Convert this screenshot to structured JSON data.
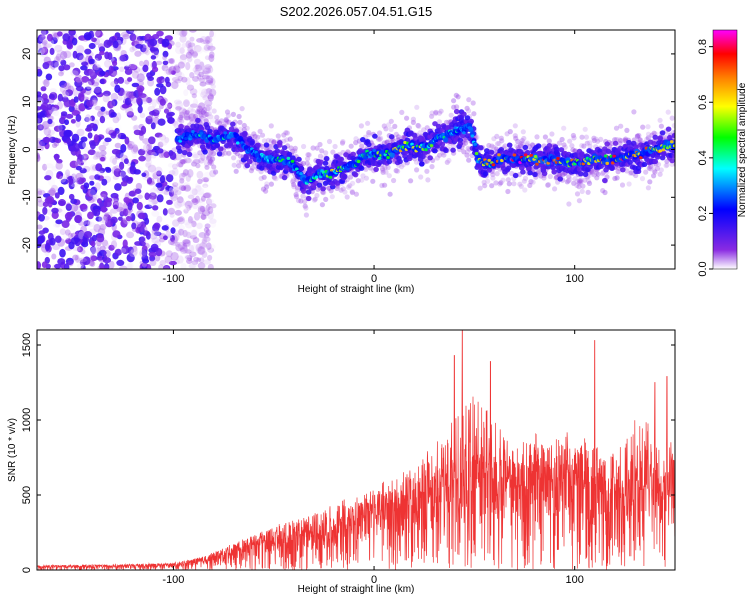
{
  "chart_data": [
    {
      "type": "heatmap",
      "title": "S202.2026.057.04.51.G15",
      "xlabel": "Height of straight line (km)",
      "ylabel": "Frequency (Hz)",
      "xlim": [
        -168,
        150
      ],
      "ylim": [
        -25,
        25
      ],
      "xticks": [
        -100,
        0,
        100
      ],
      "yticks": [
        -20,
        -10,
        0,
        10,
        20
      ],
      "colorbar": {
        "label": "Normalized spectral amplitude",
        "range": [
          0,
          0.86
        ],
        "ticks": [
          0.0,
          0.2,
          0.4,
          0.6,
          0.8
        ],
        "colors": [
          "#ffffff",
          "#8a2be2",
          "#0000ff",
          "#00ffff",
          "#00ff00",
          "#ffff00",
          "#ff8000",
          "#ff0000",
          "#ff00ff"
        ]
      },
      "noise_region_x": [
        -168,
        -84
      ],
      "ridge": {
        "x": [
          -98,
          -90,
          -80,
          -70,
          -62,
          -55,
          -48,
          -40,
          -34,
          -28,
          -22,
          -16,
          -10,
          -4,
          0,
          6,
          12,
          18,
          24,
          30,
          36,
          42,
          48,
          52,
          56,
          62,
          70,
          80,
          90,
          100,
          110,
          120,
          130,
          140,
          150
        ],
        "freq": [
          2,
          3,
          2,
          3,
          0,
          -2,
          -2,
          -3,
          -7,
          -5,
          -5,
          -4,
          -3,
          -1,
          -1,
          -1,
          0,
          1,
          0,
          2,
          3,
          4,
          5,
          -2,
          -3,
          -2,
          -2,
          -2,
          -2,
          -3,
          -2,
          -2,
          -1,
          0,
          1
        ],
        "amp": [
          0.35,
          0.4,
          0.45,
          0.35,
          0.3,
          0.45,
          0.5,
          0.45,
          0.4,
          0.5,
          0.6,
          0.55,
          0.45,
          0.55,
          0.5,
          0.6,
          0.65,
          0.6,
          0.55,
          0.5,
          0.45,
          0.4,
          0.4,
          0.55,
          0.7,
          0.8,
          0.85,
          0.8,
          0.75,
          0.7,
          0.75,
          0.8,
          0.8,
          0.7,
          0.6
        ]
      }
    },
    {
      "type": "line",
      "xlabel": "Height of straight line (km)",
      "ylabel": "SNR (10 * v/v)",
      "xlim": [
        -168,
        150
      ],
      "ylim": [
        0,
        1600
      ],
      "xticks": [
        -100,
        0,
        100
      ],
      "yticks": [
        0,
        500,
        1000,
        1500
      ],
      "color": "#ee3333",
      "envelope": {
        "x": [
          -168,
          -130,
          -100,
          -85,
          -70,
          -55,
          -40,
          -25,
          -10,
          0,
          10,
          20,
          30,
          40,
          50,
          60,
          70,
          80,
          90,
          100,
          110,
          120,
          130,
          140,
          150
        ],
        "median": [
          20,
          25,
          30,
          60,
          120,
          180,
          220,
          240,
          300,
          350,
          380,
          420,
          480,
          520,
          550,
          540,
          520,
          560,
          580,
          560,
          520,
          480,
          500,
          520,
          540
        ],
        "peak": [
          40,
          45,
          60,
          110,
          220,
          330,
          420,
          520,
          640,
          720,
          760,
          900,
          1100,
          1350,
          1600,
          1300,
          1000,
          1150,
          1100,
          1200,
          1050,
          1000,
          1350,
          1280,
          1050
        ]
      },
      "spikes": [
        {
          "x": 44,
          "y": 1600
        },
        {
          "x": 40,
          "y": 1430
        },
        {
          "x": 58,
          "y": 1390
        },
        {
          "x": 110,
          "y": 1530
        },
        {
          "x": 146,
          "y": 1290
        },
        {
          "x": 140,
          "y": 1250
        }
      ]
    }
  ]
}
